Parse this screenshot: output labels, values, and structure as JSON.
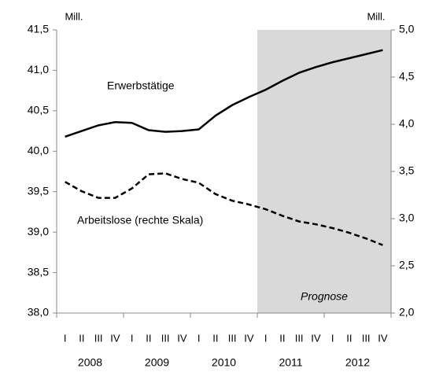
{
  "chart_data": {
    "type": "line",
    "y_unit": "Mill.",
    "y2_unit": "Mill.",
    "categories": [
      "I",
      "II",
      "III",
      "IV",
      "I",
      "II",
      "III",
      "IV",
      "I",
      "II",
      "III",
      "IV",
      "I",
      "II",
      "III",
      "IV",
      "I",
      "II",
      "III",
      "IV"
    ],
    "years": [
      "2008",
      "2009",
      "2010",
      "2011",
      "2012"
    ],
    "series": [
      {
        "name": "Erwerbstätige",
        "color": "#000000",
        "dash": false,
        "values": [
          40.18,
          40.25,
          40.32,
          40.36,
          40.35,
          40.26,
          40.24,
          40.25,
          40.27,
          40.44,
          40.57,
          40.67,
          40.76,
          40.87,
          40.97,
          41.04,
          41.1,
          41.15,
          41.2,
          41.25
        ]
      },
      {
        "name": "Arbeitslose (rechte Skala)",
        "color": "#000000",
        "dash": true,
        "axis": "y2",
        "values": [
          3.39,
          3.29,
          3.22,
          3.22,
          3.32,
          3.47,
          3.48,
          3.42,
          3.38,
          3.26,
          3.19,
          3.15,
          3.1,
          3.03,
          2.97,
          2.94,
          2.9,
          2.85,
          2.79,
          2.72
        ]
      }
    ],
    "ylim": [
      38.0,
      41.5
    ],
    "yticks": [
      {
        "value": 38.0,
        "label": "38,0"
      },
      {
        "value": 38.5,
        "label": "38,5"
      },
      {
        "value": 39.0,
        "label": "39,0"
      },
      {
        "value": 39.5,
        "label": "39,5"
      },
      {
        "value": 40.0,
        "label": "40,0"
      },
      {
        "value": 40.5,
        "label": "40,5"
      },
      {
        "value": 41.0,
        "label": "41,0"
      },
      {
        "value": 41.5,
        "label": "41,5"
      }
    ],
    "y2lim": [
      2.0,
      5.0
    ],
    "y2ticks": [
      {
        "value": 2.0,
        "label": "2,0"
      },
      {
        "value": 2.5,
        "label": "2,5"
      },
      {
        "value": 3.0,
        "label": "3,0"
      },
      {
        "value": 3.5,
        "label": "3,5"
      },
      {
        "value": 4.0,
        "label": "4,0"
      },
      {
        "value": 4.5,
        "label": "4,5"
      },
      {
        "value": 5.0,
        "label": "5,0"
      }
    ],
    "forecast": {
      "label": "Prognose",
      "from_index": 12
    }
  }
}
